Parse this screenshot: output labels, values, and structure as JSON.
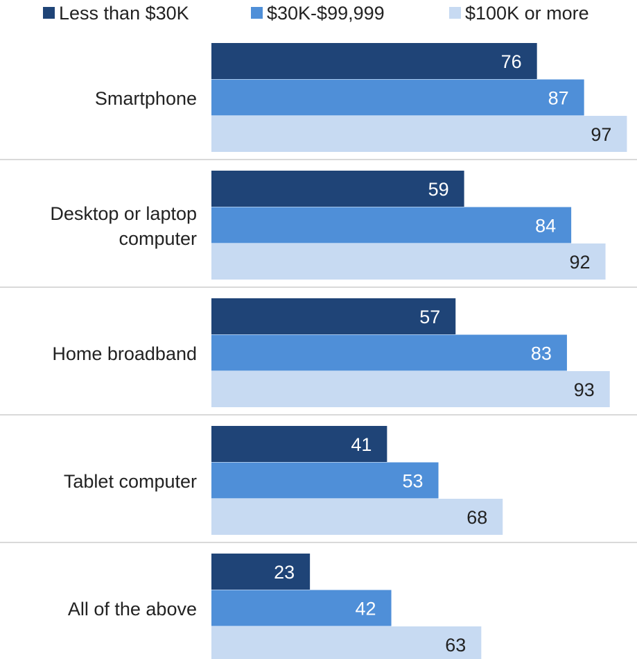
{
  "chart_data": {
    "type": "bar",
    "orientation": "horizontal",
    "title": "",
    "xlabel": "",
    "ylabel": "",
    "categories": [
      [
        "Smartphone"
      ],
      [
        "Desktop or laptop",
        "computer"
      ],
      [
        "Home broadband"
      ],
      [
        "Tablet computer"
      ],
      [
        "All of the above"
      ]
    ],
    "series": [
      {
        "name": "Less than $30K",
        "color": "#1f4477",
        "label_color": "#ffffff",
        "values": [
          76,
          59,
          57,
          41,
          23
        ]
      },
      {
        "name": "$30K-$99,999",
        "color": "#4f8fd8",
        "label_color": "#ffffff",
        "values": [
          87,
          84,
          83,
          53,
          42
        ]
      },
      {
        "name": "$100K or more",
        "color": "#c7daf2",
        "label_color": "#222222",
        "values": [
          97,
          92,
          93,
          68,
          63
        ]
      }
    ],
    "xlim": [
      0,
      100
    ],
    "grid": false,
    "legend_position": "top",
    "separator_color": "#d9d9d9"
  }
}
